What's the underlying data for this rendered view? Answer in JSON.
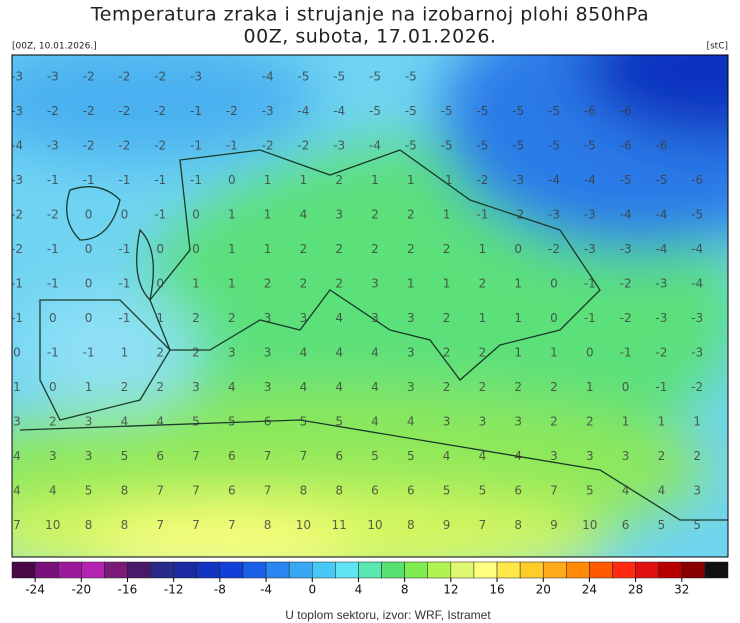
{
  "header": {
    "title": "Temperatura zraka i strujanje na izobarnoj plohi 850hPa",
    "subtitle": "00Z, subota, 17.01.2026.",
    "run_label": "[00Z, 10.01.2026.]",
    "unit_label": "[stC]"
  },
  "map": {
    "temperature_labels": [
      [
        -3,
        -3,
        -2,
        -2,
        -2,
        -3,
        null,
        -4,
        -5,
        -5,
        -5,
        -5,
        null,
        null,
        null,
        null,
        null,
        null,
        null,
        null
      ],
      [
        -3,
        -2,
        -2,
        -2,
        -2,
        -1,
        -2,
        -3,
        -4,
        -4,
        -5,
        -5,
        -5,
        -5,
        -5,
        -5,
        -6,
        -6,
        null,
        null
      ],
      [
        -4,
        -3,
        -2,
        -2,
        -2,
        -1,
        -1,
        -2,
        -2,
        -3,
        -4,
        -5,
        -5,
        -5,
        -5,
        -5,
        -5,
        -6,
        -6,
        null
      ],
      [
        -3,
        -1,
        -1,
        -1,
        -1,
        -1,
        0,
        1,
        1,
        2,
        1,
        1,
        -1,
        -2,
        -3,
        -4,
        -4,
        -5,
        -5,
        -6
      ],
      [
        -2,
        -2,
        0,
        0,
        -1,
        0,
        1,
        1,
        4,
        3,
        2,
        2,
        1,
        -1,
        -2,
        -3,
        -3,
        -4,
        -4,
        -5
      ],
      [
        -2,
        -1,
        0,
        -1,
        0,
        0,
        1,
        1,
        2,
        2,
        2,
        2,
        2,
        1,
        0,
        -2,
        -3,
        -3,
        -4,
        -4
      ],
      [
        -1,
        -1,
        0,
        -1,
        0,
        1,
        1,
        2,
        2,
        2,
        3,
        1,
        1,
        2,
        1,
        0,
        -1,
        -2,
        -3,
        -4
      ],
      [
        -1,
        0,
        0,
        -1,
        1,
        2,
        2,
        3,
        3,
        4,
        3,
        3,
        2,
        1,
        1,
        0,
        -1,
        -2,
        -3,
        -3
      ],
      [
        0,
        -1,
        -1,
        1,
        2,
        2,
        3,
        3,
        4,
        4,
        4,
        3,
        2,
        2,
        1,
        1,
        0,
        -1,
        -2,
        -3
      ],
      [
        1,
        0,
        1,
        2,
        2,
        3,
        4,
        3,
        4,
        4,
        4,
        3,
        2,
        2,
        2,
        2,
        1,
        0,
        -1,
        -2
      ],
      [
        3,
        2,
        3,
        4,
        4,
        5,
        5,
        6,
        5,
        5,
        4,
        4,
        3,
        3,
        3,
        2,
        2,
        1,
        1,
        1
      ],
      [
        4,
        3,
        3,
        5,
        6,
        7,
        6,
        7,
        7,
        6,
        5,
        5,
        4,
        4,
        4,
        3,
        3,
        3,
        2,
        2
      ],
      [
        4,
        4,
        5,
        8,
        7,
        7,
        6,
        7,
        8,
        8,
        6,
        6,
        5,
        5,
        6,
        7,
        5,
        4,
        4,
        3
      ],
      [
        7,
        10,
        8,
        8,
        7,
        7,
        7,
        8,
        10,
        11,
        10,
        8,
        9,
        7,
        8,
        9,
        10,
        6,
        5,
        5
      ]
    ]
  },
  "colorbar": {
    "range": [
      -26,
      36
    ],
    "colors": [
      "#4a0848",
      "#7a107a",
      "#9a1a9a",
      "#b424b0",
      "#7c1a78",
      "#4a1a6a",
      "#2a2a88",
      "#1a2aa0",
      "#1234c0",
      "#1040d8",
      "#1a60e8",
      "#2a86f0",
      "#38a8f4",
      "#48c8f4",
      "#60e4f4",
      "#58e8b0",
      "#58e070",
      "#80ec50",
      "#b0f450",
      "#e0f870",
      "#ffff80",
      "#ffe848",
      "#ffcc28",
      "#ffaa18",
      "#ff8a08",
      "#ff5a00",
      "#ff2a10",
      "#e01010",
      "#b80000",
      "#880000",
      "#101010"
    ],
    "ticks": [
      -24,
      -20,
      -16,
      -12,
      -8,
      -4,
      0,
      4,
      8,
      12,
      16,
      20,
      24,
      28,
      32
    ]
  },
  "footer": {
    "caption": "U toplom sektoru, izvor: WRF, Istramet"
  }
}
